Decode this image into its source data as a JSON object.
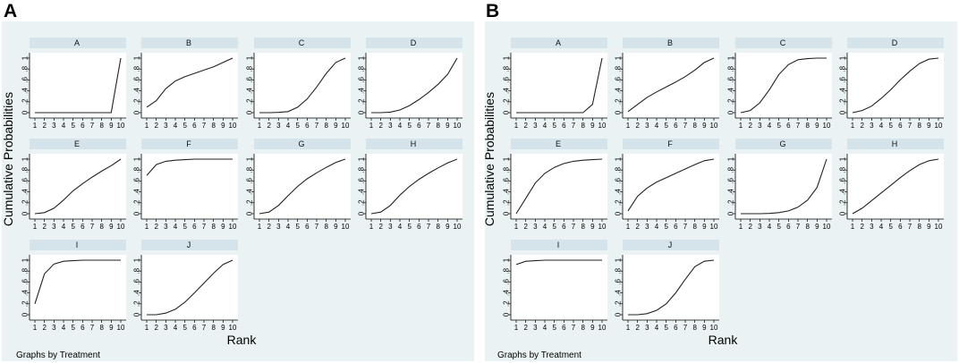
{
  "chart_data": [
    {
      "type": "line",
      "panel_label": "A",
      "ylabel": "Cumulative Probabilities",
      "xlabel": "Rank",
      "note": "Graphs by Treatment",
      "x_ticks": [
        "1",
        "2",
        "3",
        "4",
        "5",
        "6",
        "7",
        "8",
        "9",
        "10"
      ],
      "y_ticks": [
        "0",
        ".2",
        ".4",
        ".6",
        ".8",
        "1"
      ],
      "xlim": [
        1,
        10
      ],
      "ylim": [
        0,
        1
      ],
      "series": [
        {
          "name": "A",
          "values": [
            0,
            0,
            0,
            0,
            0,
            0,
            0,
            0,
            0,
            1
          ]
        },
        {
          "name": "B",
          "values": [
            0.1,
            0.22,
            0.44,
            0.58,
            0.66,
            0.72,
            0.78,
            0.84,
            0.92,
            1
          ]
        },
        {
          "name": "C",
          "values": [
            0,
            0,
            0.005,
            0.02,
            0.1,
            0.25,
            0.47,
            0.72,
            0.92,
            1
          ]
        },
        {
          "name": "D",
          "values": [
            0,
            0,
            0.01,
            0.05,
            0.13,
            0.24,
            0.37,
            0.52,
            0.7,
            1
          ]
        },
        {
          "name": "E",
          "values": [
            0,
            0.02,
            0.1,
            0.25,
            0.42,
            0.55,
            0.67,
            0.78,
            0.88,
            1
          ]
        },
        {
          "name": "F",
          "values": [
            0.7,
            0.9,
            0.96,
            0.98,
            0.99,
            1,
            1,
            1,
            1,
            1
          ]
        },
        {
          "name": "G",
          "values": [
            0,
            0.03,
            0.15,
            0.33,
            0.5,
            0.64,
            0.75,
            0.85,
            0.94,
            1
          ]
        },
        {
          "name": "H",
          "values": [
            0,
            0.03,
            0.15,
            0.34,
            0.5,
            0.63,
            0.74,
            0.84,
            0.93,
            1
          ]
        },
        {
          "name": "I",
          "values": [
            0.2,
            0.75,
            0.93,
            0.98,
            0.99,
            1,
            1,
            1,
            1,
            1
          ]
        },
        {
          "name": "J",
          "values": [
            0,
            0,
            0.03,
            0.1,
            0.23,
            0.4,
            0.58,
            0.76,
            0.92,
            1
          ]
        }
      ]
    },
    {
      "type": "line",
      "panel_label": "B",
      "ylabel": "Cumulative Probabilities",
      "xlabel": "Rank",
      "note": "Graphs by Treatment",
      "x_ticks": [
        "1",
        "2",
        "3",
        "4",
        "5",
        "6",
        "7",
        "8",
        "9",
        "10"
      ],
      "y_ticks": [
        "0",
        ".2",
        ".4",
        ".6",
        ".8",
        "1"
      ],
      "xlim": [
        1,
        10
      ],
      "ylim": [
        0,
        1
      ],
      "series": [
        {
          "name": "A",
          "values": [
            0,
            0,
            0,
            0,
            0,
            0,
            0,
            0,
            0.15,
            1
          ]
        },
        {
          "name": "B",
          "values": [
            0.02,
            0.15,
            0.28,
            0.38,
            0.47,
            0.56,
            0.66,
            0.78,
            0.92,
            1
          ]
        },
        {
          "name": "C",
          "values": [
            0,
            0.04,
            0.18,
            0.42,
            0.7,
            0.88,
            0.97,
            0.99,
            1,
            1
          ]
        },
        {
          "name": "D",
          "values": [
            0,
            0.04,
            0.12,
            0.26,
            0.42,
            0.6,
            0.76,
            0.9,
            0.98,
            1
          ]
        },
        {
          "name": "E",
          "values": [
            0,
            0.28,
            0.56,
            0.74,
            0.85,
            0.92,
            0.96,
            0.98,
            0.99,
            1
          ]
        },
        {
          "name": "F",
          "values": [
            0.05,
            0.32,
            0.47,
            0.58,
            0.66,
            0.74,
            0.82,
            0.9,
            0.97,
            1
          ]
        },
        {
          "name": "G",
          "values": [
            0,
            0,
            0,
            0.005,
            0.02,
            0.05,
            0.12,
            0.25,
            0.48,
            1
          ]
        },
        {
          "name": "H",
          "values": [
            0,
            0.1,
            0.24,
            0.38,
            0.52,
            0.66,
            0.79,
            0.9,
            0.97,
            1
          ]
        },
        {
          "name": "I",
          "values": [
            0.92,
            0.98,
            0.99,
            1,
            1,
            1,
            1,
            1,
            1,
            1
          ]
        },
        {
          "name": "J",
          "values": [
            0,
            0,
            0.02,
            0.08,
            0.2,
            0.4,
            0.65,
            0.88,
            0.98,
            1
          ]
        }
      ]
    }
  ]
}
